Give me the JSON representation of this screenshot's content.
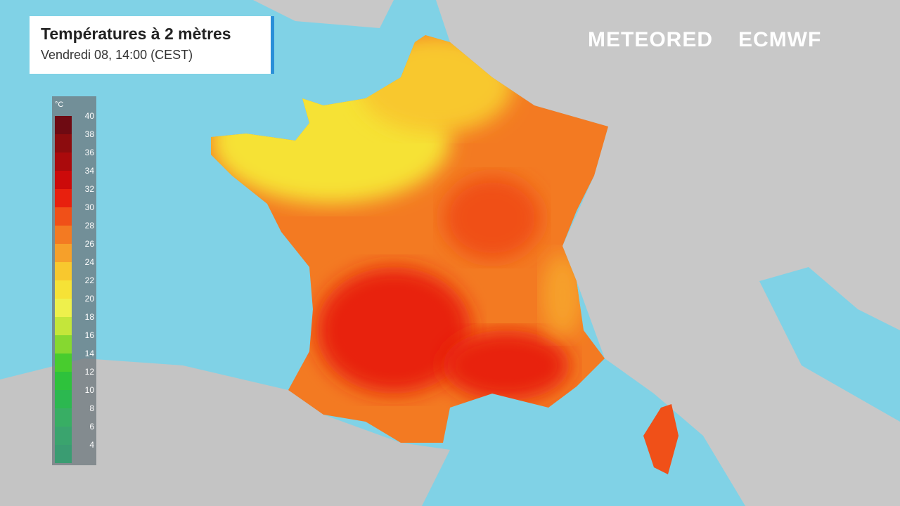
{
  "header": {
    "title": "Températures à 2 mètres",
    "subtitle": "Vendredi 08, 14:00 (CEST)"
  },
  "logos": {
    "left": "METEORED",
    "right": "ECMWF"
  },
  "legend": {
    "unit": "°C",
    "items": [
      {
        "value": 40,
        "color": "#6e0a12"
      },
      {
        "value": 38,
        "color": "#8c0c0e"
      },
      {
        "value": 36,
        "color": "#aa0a0c"
      },
      {
        "value": 34,
        "color": "#cc0a0a"
      },
      {
        "value": 32,
        "color": "#e8200e"
      },
      {
        "value": 30,
        "color": "#f05018"
      },
      {
        "value": 28,
        "color": "#f37a22"
      },
      {
        "value": 26,
        "color": "#f6a02a"
      },
      {
        "value": 24,
        "color": "#f8c82e"
      },
      {
        "value": 22,
        "color": "#f6e236"
      },
      {
        "value": 20,
        "color": "#eef04c"
      },
      {
        "value": 18,
        "color": "#c4e63a"
      },
      {
        "value": 16,
        "color": "#86d830"
      },
      {
        "value": 14,
        "color": "#48cc2e"
      },
      {
        "value": 12,
        "color": "#2ec23c"
      },
      {
        "value": 10,
        "color": "#2cb850"
      },
      {
        "value": 8,
        "color": "#38ae64"
      },
      {
        "value": 6,
        "color": "#3aa46e"
      },
      {
        "value": 4,
        "color": "#3a9c72"
      }
    ]
  }
}
